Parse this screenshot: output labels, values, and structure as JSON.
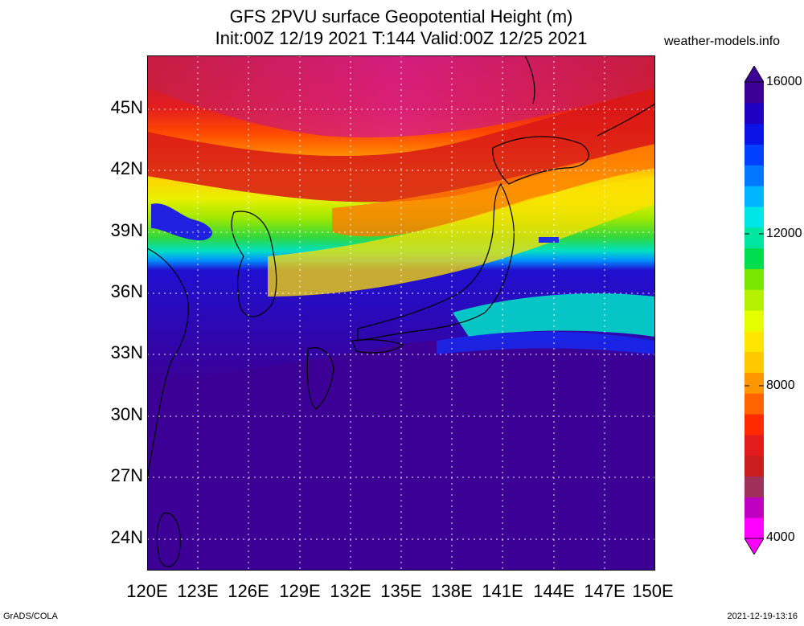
{
  "title": {
    "line1": "GFS 2PVU surface Geopotential Height (m)",
    "line2": "Init:00Z 12/19 2021 T:144 Valid:00Z 12/25 2021"
  },
  "site": "weather-models.info",
  "lat_labels": [
    "45N",
    "42N",
    "39N",
    "36N",
    "33N",
    "30N",
    "27N",
    "24N"
  ],
  "lon_labels": [
    "120E",
    "123E",
    "126E",
    "129E",
    "132E",
    "135E",
    "138E",
    "141E",
    "144E",
    "147E",
    "150E"
  ],
  "colorbar": {
    "labels": [
      "16000",
      "12000",
      "8000",
      "4000"
    ],
    "colors": [
      "#ff00ff",
      "#c000c0",
      "#a0305a",
      "#c81e1e",
      "#e21c1c",
      "#ff2a00",
      "#ff6400",
      "#ff9600",
      "#ffc800",
      "#ffe600",
      "#e6ff00",
      "#b4f000",
      "#78e600",
      "#00dc50",
      "#00e6a0",
      "#00e6e6",
      "#00b4ff",
      "#0078ff",
      "#0040ff",
      "#0a14e6",
      "#2000c0",
      "#3c0096"
    ]
  },
  "credits": {
    "left": "GrADS/COLA",
    "right": "2021-12-19-13:16"
  }
}
